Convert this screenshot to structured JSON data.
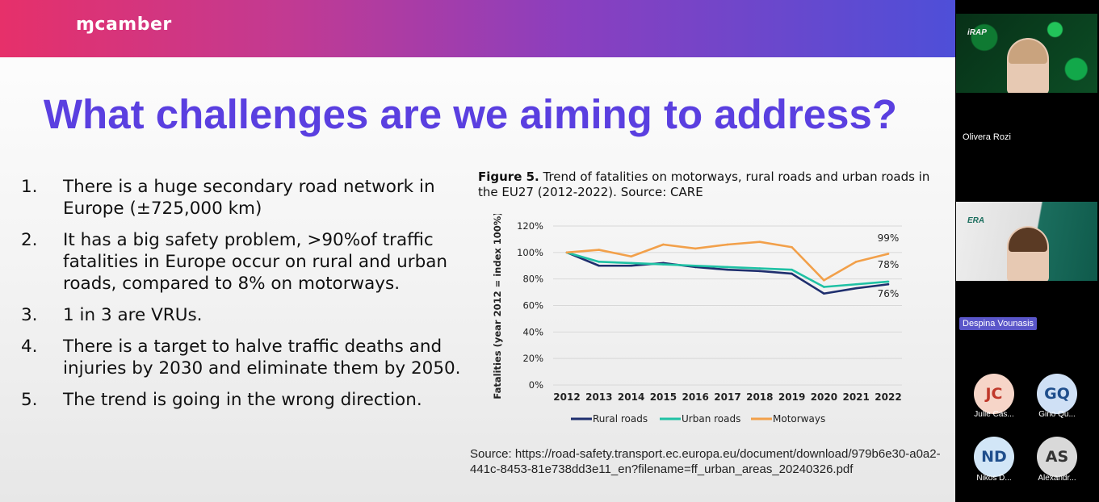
{
  "brand": {
    "logo_text": "ɱcamber"
  },
  "slide": {
    "title": "What challenges are we aiming to address?",
    "bullets": [
      {
        "num": "1.",
        "text": "There is a huge secondary road network in Europe (±725,000 km)"
      },
      {
        "num": "2.",
        "text": "It has a big safety problem, >90%of traffic fatalities in Europe occur on rural and urban roads, compared to 8% on motorways."
      },
      {
        "num": "3.",
        "text": "1 in 3 are VRUs."
      },
      {
        "num": "4.",
        "text": "There is a target to halve traffic deaths and injuries by 2030 and eliminate them by 2050."
      },
      {
        "num": "5.",
        "text": "The trend is going in the wrong direction."
      }
    ],
    "figure_label": "Figure 5.",
    "figure_caption": " Trend of fatalities on motorways, rural roads and urban roads in the EU27 (2012-2022). Source: CARE",
    "source": "Source: https://road-safety.transport.ec.europa.eu/document/download/979b6e30-a0a2-441c-8453-81e738dd3e11_en?filename=ff_urban_areas_20240326.pdf"
  },
  "chart_data": {
    "type": "line",
    "x": [
      "2012",
      "2013",
      "2014",
      "2015",
      "2016",
      "2017",
      "2018",
      "2019",
      "2020",
      "2021",
      "2022"
    ],
    "ylabel": "Fatalities (year 2012 = index 100%)",
    "ylim": [
      0,
      120
    ],
    "yticks": [
      "0%",
      "20%",
      "40%",
      "60%",
      "80%",
      "100%",
      "120%"
    ],
    "grid": true,
    "legend_position": "bottom",
    "series": [
      {
        "name": "Rural roads",
        "color": "#1f2f6e",
        "values": [
          100,
          90,
          90,
          92,
          89,
          87,
          86,
          84,
          69,
          73,
          76
        ]
      },
      {
        "name": "Urban roads",
        "color": "#1fc1a4",
        "values": [
          100,
          93,
          92,
          91,
          90,
          89,
          88,
          87,
          74,
          76,
          78
        ]
      },
      {
        "name": "Motorways",
        "color": "#f2a04a",
        "values": [
          100,
          102,
          97,
          106,
          103,
          106,
          108,
          104,
          79,
          93,
          99
        ]
      }
    ],
    "end_labels": [
      "99%",
      "78%",
      "76%"
    ]
  },
  "participants": {
    "video": [
      {
        "name": "Olivera Rozi",
        "logo": "iRAP"
      },
      {
        "name": "Despina Vounasis",
        "logo": "ERA"
      }
    ],
    "avatars": [
      {
        "initials": "JC",
        "name": "Julie Cas..."
      },
      {
        "initials": "GQ",
        "name": "Gino Qu..."
      },
      {
        "initials": "ND",
        "name": "Nikos D..."
      },
      {
        "initials": "AS",
        "name": "Alexandr..."
      }
    ]
  }
}
